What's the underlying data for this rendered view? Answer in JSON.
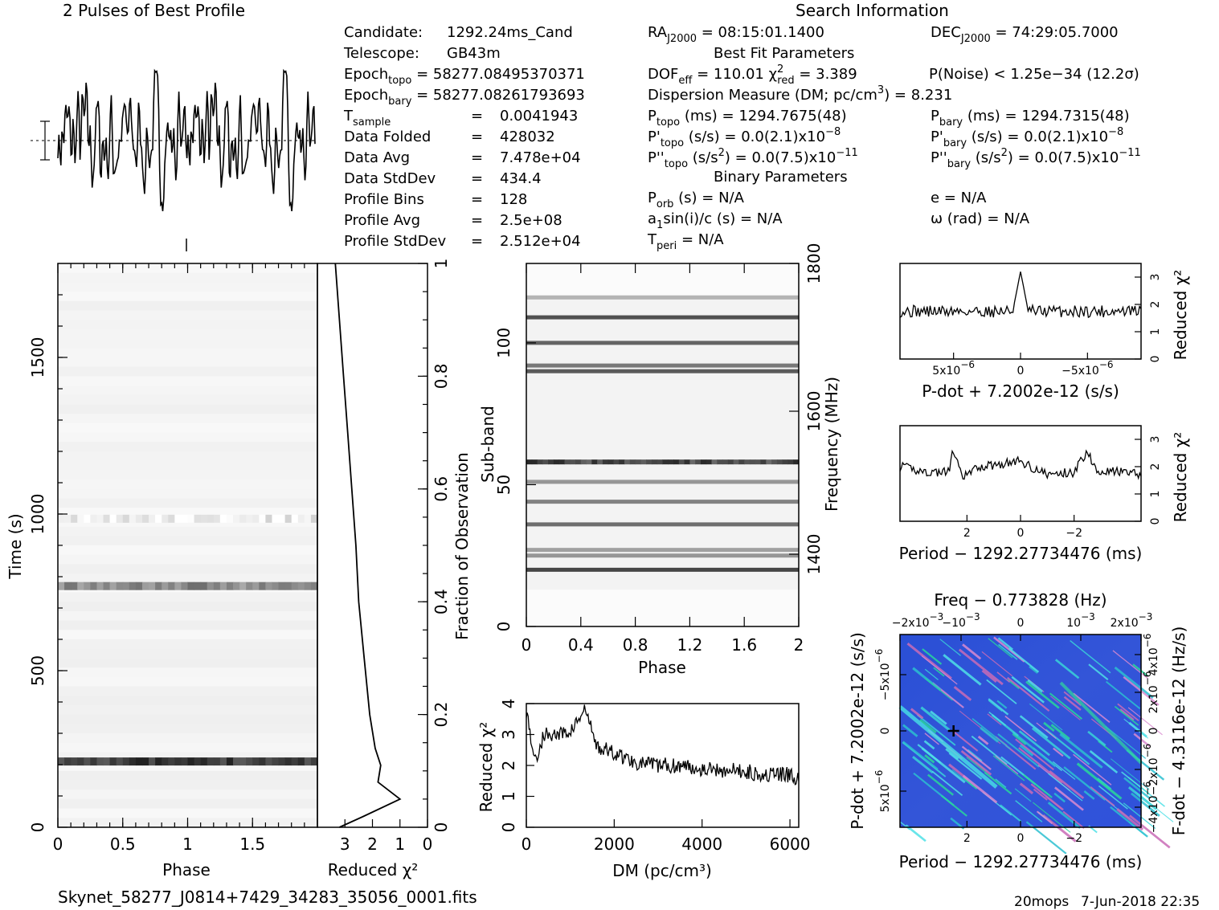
{
  "header": {
    "profile_title": "2 Pulses of Best Profile",
    "search_title": "Search Information",
    "best_fit_title": "Best Fit Parameters",
    "binary_title": "Binary Parameters",
    "footer_file": "Skynet_58277_J0814+7429_34283_35056_0001.fits",
    "footer_user": "20mops",
    "footer_date": "7-Jun-2018 22:35"
  },
  "info": {
    "candidate_label": "Candidate:",
    "candidate": "1292.24ms_Cand",
    "telescope_label": "Telescope:",
    "telescope": "GB43m",
    "epoch_topo": "58277.08495370371",
    "epoch_bary": "58277.08261793693",
    "rows": [
      {
        "label": "Data Folded",
        "value": "428032"
      },
      {
        "label": "Data Avg",
        "value": "7.478e+04"
      },
      {
        "label": "Data StdDev",
        "value": "434.4"
      },
      {
        "label": "Profile Bins",
        "value": "128"
      },
      {
        "label": "Profile Avg",
        "value": "2.5e+08"
      },
      {
        "label": "Profile StdDev",
        "value": "2.512e+04"
      }
    ],
    "t_sample": "0.0041943",
    "ra": "08:15:01.1400",
    "dec": "74:29:05.7000",
    "dof": "110.01",
    "chi2_red": "3.389",
    "p_noise": "1.25e−34",
    "sigma": "(12.2σ)",
    "dm": "8.231",
    "p_topo": "1294.7675(48)",
    "p_bary": "1294.7315(48)",
    "pd_topo": "0.0(2.1)x10",
    "pd_bary": "0.0(2.1)x10",
    "pd_exp": "−8",
    "pdd_topo": "0.0(7.5)x10",
    "pdd_bary": "0.0(7.5)x10",
    "pdd_exp": "−11",
    "p_orb": "N/A",
    "e": "N/A",
    "a1sini": "N/A",
    "omega": "N/A",
    "t_peri": "N/A"
  },
  "chart_data": [
    {
      "id": "profile",
      "type": "line",
      "title": "2 Pulses of Best Profile",
      "xlim": [
        0,
        2
      ],
      "x_ticks": [
        0,
        0.5,
        1,
        1.5
      ],
      "bins": 128
    },
    {
      "id": "time_phase",
      "type": "heatmap",
      "xlabel": "Phase",
      "ylabel": "Time (s)",
      "xlim": [
        0,
        2
      ],
      "ylim": [
        0,
        1800
      ],
      "x_tick_labels": [
        "0",
        "0.5",
        "1",
        "1.5"
      ],
      "y_tick_labels": [
        "0",
        "500",
        "1000",
        "1500"
      ],
      "bright_bands_s": [
        210,
        770,
        985
      ]
    },
    {
      "id": "time_chi2",
      "type": "line",
      "xlabel": "Reduced χ²",
      "xlim": [
        4,
        0
      ],
      "ylim": [
        0,
        1
      ],
      "x_tick_labels": [
        "3",
        "2",
        "1",
        "0"
      ],
      "y_tick_labels": [
        "0",
        "0.2",
        "0.4",
        "0.6",
        "0.8",
        "1"
      ],
      "right_ylabel": "Fraction of Observation",
      "fraction": [
        0,
        0.02,
        0.05,
        0.08,
        0.11,
        0.14,
        0.2,
        0.3,
        0.4,
        0.5,
        0.6,
        0.7,
        0.8,
        0.9,
        1.0
      ],
      "chi2": [
        3.2,
        2.3,
        1.0,
        1.8,
        1.7,
        1.9,
        2.1,
        2.3,
        2.5,
        2.6,
        2.75,
        2.9,
        3.05,
        3.2,
        3.35
      ]
    },
    {
      "id": "subband_phase",
      "type": "heatmap",
      "xlabel": "Phase",
      "ylabel": "Sub-band",
      "right_ylabel": "Frequency (MHz)",
      "xlim": [
        0,
        2
      ],
      "ylim": [
        0,
        128
      ],
      "x_tick_labels": [
        "0",
        "0.4",
        "0.8",
        "1.2",
        "1.6",
        "2"
      ],
      "y_tick_labels": [
        "0",
        "50",
        "100"
      ],
      "freq_tick_labels": [
        "1400",
        "1600",
        "1800"
      ],
      "dark_bands": [
        20,
        25,
        27,
        36,
        44,
        51,
        58,
        90,
        92,
        100,
        109,
        116
      ]
    },
    {
      "id": "dm_chi2",
      "type": "line",
      "xlabel": "DM (pc/cm³)",
      "ylabel": "Reduced χ²",
      "xlim": [
        0,
        6200
      ],
      "ylim": [
        0,
        4
      ],
      "x_tick_labels": [
        "0",
        "2000",
        "4000",
        "6000"
      ],
      "y_tick_labels": [
        "0",
        "1",
        "2",
        "3",
        "4"
      ],
      "x": [
        0,
        200,
        400,
        800,
        1000,
        1350,
        1600,
        2000,
        2500,
        3000,
        3500,
        4000,
        4500,
        5000,
        5500,
        6000,
        6200
      ],
      "y": [
        3.8,
        2.1,
        3.0,
        3.0,
        3.1,
        3.8,
        2.6,
        2.4,
        2.1,
        2.0,
        2.0,
        1.9,
        1.85,
        1.8,
        1.7,
        1.7,
        1.5
      ]
    },
    {
      "id": "pdot_chi2",
      "type": "line",
      "xlabel": "P-dot + 7.2002e-12 (s/s)",
      "ylabel": "Reduced χ²",
      "xlim": [
        9e-06,
        -9e-06
      ],
      "ylim": [
        0,
        3.5
      ],
      "x_tick_labels": [
        "5x10",
        "0",
        "−5x10"
      ],
      "x_tick_exp": "−6",
      "y_tick_labels": [
        "0",
        "1",
        "2",
        "3"
      ],
      "x": [
        9e-06,
        6e-06,
        3e-06,
        1e-06,
        0,
        -1e-06,
        -3e-06,
        -6e-06,
        -9e-06
      ],
      "y": [
        1.6,
        1.9,
        1.8,
        1.9,
        3.3,
        1.9,
        1.8,
        1.7,
        1.7
      ]
    },
    {
      "id": "period_chi2",
      "type": "line",
      "xlabel": "Period − 1292.27734476 (ms)",
      "ylabel": "Reduced χ²",
      "xlim": [
        4.5,
        -4.5
      ],
      "ylim": [
        0,
        3.5
      ],
      "x_tick_labels": [
        "2",
        "0",
        "−2"
      ],
      "y_tick_labels": [
        "0",
        "1",
        "2",
        "3"
      ],
      "x": [
        4.5,
        3.5,
        2.7,
        2.5,
        2.2,
        1.5,
        0,
        -1,
        -2,
        -2.5,
        -2.8,
        -4.5
      ],
      "y": [
        2.0,
        1.8,
        1.8,
        2.6,
        1.6,
        2.0,
        2.2,
        1.7,
        1.8,
        2.6,
        1.9,
        1.7
      ]
    },
    {
      "id": "period_pdot",
      "type": "heatmap",
      "top_label": "Freq − 0.773828 (Hz)",
      "xlabel": "Period − 1292.27734476 (ms)",
      "ylabel": "P-dot + 7.2002e-12 (s/s)",
      "right_ylabel": "F-dot − 4.3116e-12 (Hz/s)",
      "x_tick_labels": [
        "2",
        "0",
        "−2"
      ],
      "top_tick_labels": [
        "−2x10",
        "−10",
        "0",
        "10",
        "2x10"
      ],
      "top_tick_exp": "−3",
      "y_tick_labels": [
        "−5x10",
        "0",
        "5x10"
      ],
      "y_tick_exp": "−6",
      "right_tick_labels": [
        "4x10",
        "2x10",
        "0",
        "−2x10",
        "−4x10"
      ],
      "right_tick_exp": "−6",
      "best_marker": {
        "period_ms": 2.5,
        "pdot": 0
      }
    }
  ]
}
